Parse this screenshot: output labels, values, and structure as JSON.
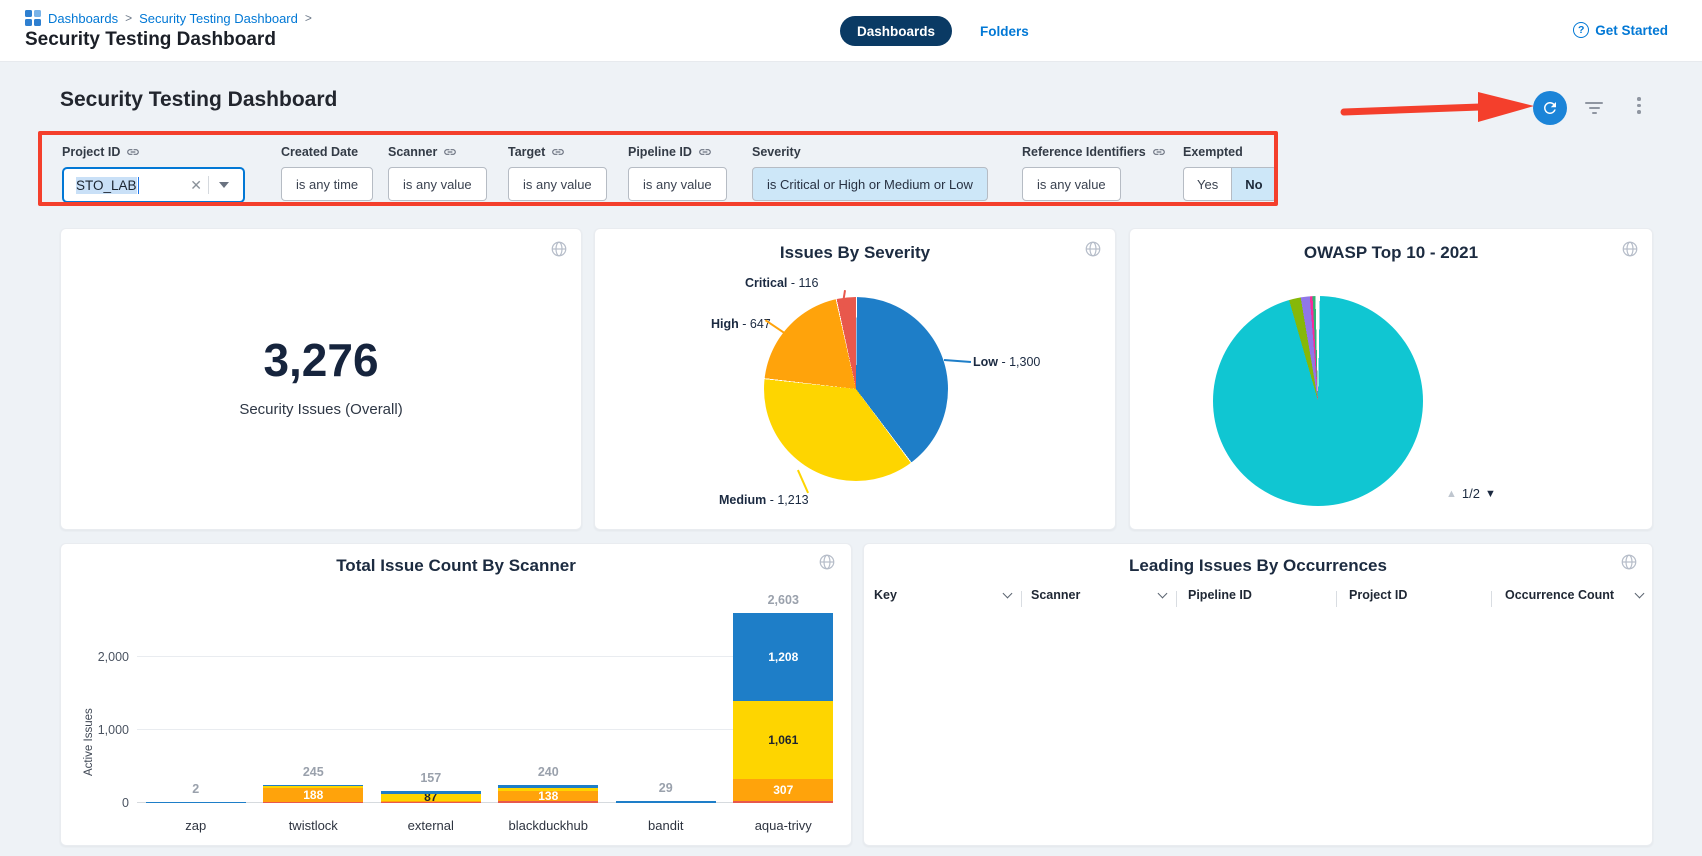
{
  "header": {
    "breadcrumb": {
      "items": [
        "Dashboards",
        "Security Testing Dashboard"
      ],
      "separator": ">"
    },
    "title": "Security Testing Dashboard",
    "tabs": {
      "dashboards": "Dashboards",
      "folders": "Folders"
    },
    "get_started": "Get Started"
  },
  "main": {
    "heading": "Security Testing Dashboard"
  },
  "filters": {
    "project_id": {
      "label": "Project ID",
      "value": "STO_LAB"
    },
    "created_date": {
      "label": "Created Date",
      "value": "is any time"
    },
    "scanner": {
      "label": "Scanner",
      "value": "is any value"
    },
    "target": {
      "label": "Target",
      "value": "is any value"
    },
    "pipeline_id": {
      "label": "Pipeline ID",
      "value": "is any value"
    },
    "severity": {
      "label": "Severity",
      "value": "is Critical or High or Medium or Low"
    },
    "reference_identifiers": {
      "label": "Reference Identifiers",
      "value": "is any value"
    },
    "exempted": {
      "label": "Exempted",
      "yes": "Yes",
      "no": "No",
      "selected": "No"
    }
  },
  "colors": {
    "accent_blue": "#0278d5",
    "navy_pill": "#0a3a64",
    "refresh_button": "#1b84d8",
    "annotation_red": "#f43f2c",
    "severity": {
      "critical": "#e8584c",
      "high": "#ffa30b",
      "medium": "#fed500",
      "low": "#1e7ec8"
    },
    "owasp_teal": "#10c6d2"
  },
  "chart_data": [
    {
      "type": "stat",
      "title": "Security Issues (Overall)",
      "value": 3276,
      "value_display": "3,276",
      "label": "Security Issues (Overall)"
    },
    {
      "type": "pie",
      "title": "Issues By Severity",
      "order": "clockwise from 12 o'clock",
      "slices": [
        {
          "label": "Low",
          "value": 1300,
          "display": "Low - 1,300",
          "color": "#1e7ec8"
        },
        {
          "label": "Medium",
          "value": 1213,
          "display": "Medium - 1,213",
          "color": "#fed500"
        },
        {
          "label": "High",
          "value": 647,
          "display": "High - 647",
          "color": "#ffa30b"
        },
        {
          "label": "Critical",
          "value": 116,
          "display": "Critical - 116",
          "color": "#e8584c"
        }
      ]
    },
    {
      "type": "pie",
      "title": "OWASP Top 10 - 2021",
      "labels_visible": false,
      "pagination": "1/2",
      "segments_deg": [
        {
          "color": "#10c6d2",
          "from": 1,
          "to": 344
        },
        {
          "color": "#86b808",
          "from": 344,
          "to": 350.5
        },
        {
          "color": "#9077e8",
          "from": 350.5,
          "to": 355.5
        },
        {
          "color": "#f52c9b",
          "from": 355.5,
          "to": 357
        },
        {
          "color": "#2fb574",
          "from": 357,
          "to": 358.6
        }
      ]
    },
    {
      "type": "bar",
      "stacked": true,
      "title": "Total Issue Count By Scanner",
      "ylabel": "Active Issues",
      "ylim": [
        0,
        2000
      ],
      "yticks": [
        {
          "value": 0,
          "label": "0"
        },
        {
          "value": 1000,
          "label": "1,000"
        },
        {
          "value": 2000,
          "label": "2,000"
        }
      ],
      "categories": [
        "zap",
        "twistlock",
        "external",
        "blackduckhub",
        "bandit",
        "aqua-trivy"
      ],
      "totals": [
        2,
        245,
        157,
        240,
        29,
        2603
      ],
      "total_labels": [
        "2",
        "245",
        "157",
        "240",
        "29",
        "2,603"
      ],
      "bars": [
        {
          "category": "zap",
          "segments": [
            {
              "color": "#1e7ec8",
              "value": 2
            }
          ]
        },
        {
          "category": "twistlock",
          "segments": [
            {
              "color": "#e8584c",
              "value": 15
            },
            {
              "color": "#ffa30b",
              "value": 188,
              "label": "188",
              "label_color": "#ffffff"
            },
            {
              "color": "#fed500",
              "value": 30
            },
            {
              "color": "#1e7ec8",
              "value": 12
            }
          ]
        },
        {
          "category": "external",
          "segments": [
            {
              "color": "#e8584c",
              "value": 20
            },
            {
              "color": "#ffa30b",
              "value": 5
            },
            {
              "color": "#fed500",
              "value": 87,
              "label": "87",
              "label_color": "#1d2330"
            },
            {
              "color": "#1e7ec8",
              "value": 45
            }
          ]
        },
        {
          "category": "blackduckhub",
          "segments": [
            {
              "color": "#e8584c",
              "value": 30
            },
            {
              "color": "#ffa30b",
              "value": 138,
              "label": "138",
              "label_color": "#ffffff"
            },
            {
              "color": "#fed500",
              "value": 42
            },
            {
              "color": "#1e7ec8",
              "value": 30
            }
          ]
        },
        {
          "category": "bandit",
          "segments": [
            {
              "color": "#1e7ec8",
              "value": 29
            }
          ]
        },
        {
          "category": "aqua-trivy",
          "segments": [
            {
              "color": "#e8584c",
              "value": 27
            },
            {
              "color": "#ffa30b",
              "value": 307,
              "label": "307",
              "label_color": "#ffffff"
            },
            {
              "color": "#fed500",
              "value": 1061,
              "label": "1,061",
              "label_color": "#1d2330"
            },
            {
              "color": "#1e7ec8",
              "value": 1208,
              "label": "1,208",
              "label_color": "#ffffff"
            }
          ]
        }
      ]
    },
    {
      "type": "table",
      "title": "Leading Issues By Occurrences",
      "columns": [
        "Key",
        "Scanner",
        "Pipeline ID",
        "Project ID",
        "Occurrence Count"
      ],
      "sortable": [
        "Key",
        "Scanner",
        "Occurrence Count"
      ],
      "rows": []
    }
  ]
}
